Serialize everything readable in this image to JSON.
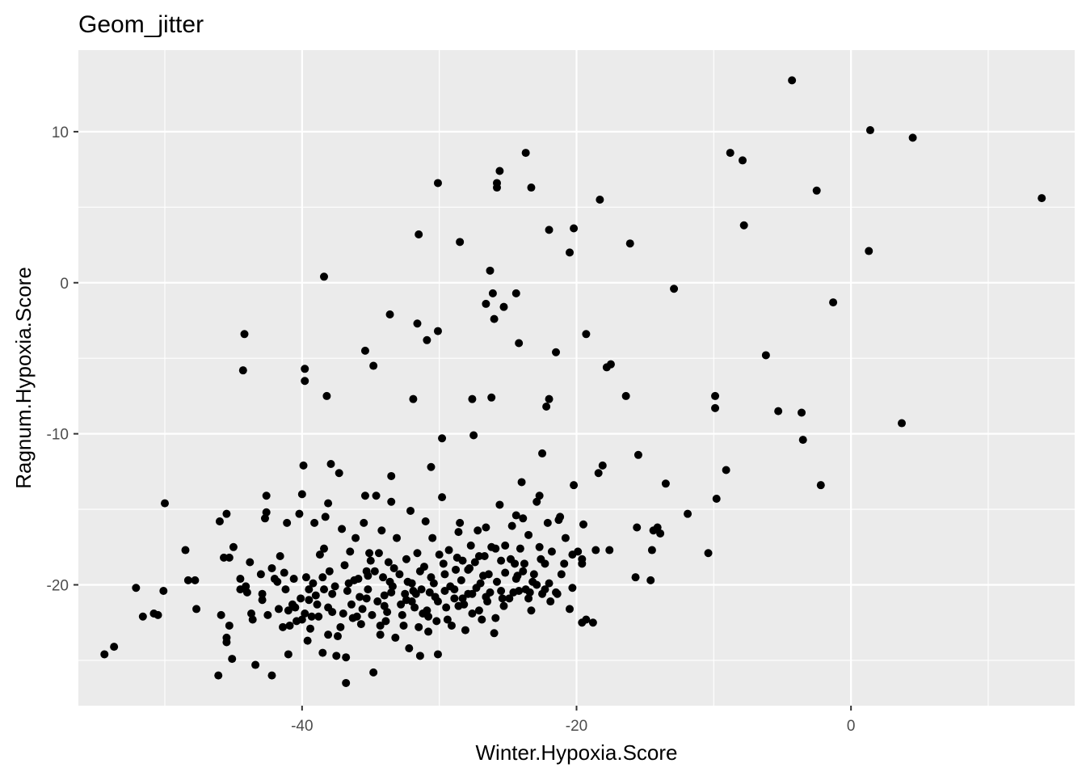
{
  "chart_data": {
    "type": "scatter",
    "title": "Geom_jitter",
    "xlabel": "Winter.Hypoxia.Score",
    "ylabel": "Ragnum.Hypoxia.Score",
    "xlim": [
      -56.3,
      16.3
    ],
    "ylim": [
      -28.0,
      15.4
    ],
    "x_ticks": [
      -40,
      -20,
      0
    ],
    "y_ticks": [
      -20,
      -10,
      0,
      10
    ],
    "x_minor_ticks": [
      -50,
      -30,
      -10,
      10
    ],
    "y_minor_ticks": [
      -25,
      -15,
      -5,
      5
    ],
    "grid": true,
    "legend": "none",
    "panel_color": "#ebebeb",
    "grid_color": "#ffffff",
    "point_color": "#000000",
    "points": [
      [
        -4.3,
        13.4
      ],
      [
        1.4,
        10.1
      ],
      [
        4.5,
        9.6
      ],
      [
        13.9,
        5.6
      ],
      [
        -8.8,
        8.6
      ],
      [
        -7.9,
        8.1
      ],
      [
        -2.5,
        6.1
      ],
      [
        1.3,
        2.1
      ],
      [
        -1.3,
        -1.3
      ],
      [
        -6.2,
        -4.8
      ],
      [
        -5.3,
        -8.5
      ],
      [
        -3.6,
        -8.6
      ],
      [
        -3.5,
        -10.4
      ],
      [
        -2.2,
        -13.4
      ],
      [
        3.7,
        -9.3
      ],
      [
        -7.8,
        3.8
      ],
      [
        -12.9,
        -0.4
      ],
      [
        -9.9,
        -7.5
      ],
      [
        -9.9,
        -8.3
      ],
      [
        -9.1,
        -12.4
      ],
      [
        -9.8,
        -14.3
      ],
      [
        -10.4,
        -17.9
      ],
      [
        -11.9,
        -15.3
      ],
      [
        -13.5,
        -13.3
      ],
      [
        -13.9,
        -16.6
      ],
      [
        -14.1,
        -16.2
      ],
      [
        -14.4,
        -16.4
      ],
      [
        -14.5,
        -17.7
      ],
      [
        -14.6,
        -19.7
      ],
      [
        -15.5,
        -11.4
      ],
      [
        -15.6,
        -16.2
      ],
      [
        -15.7,
        -19.5
      ],
      [
        -16.1,
        2.6
      ],
      [
        -16.4,
        -7.5
      ],
      [
        -17.5,
        -5.4
      ],
      [
        -17.8,
        -5.6
      ],
      [
        -17.6,
        -17.7
      ],
      [
        -18.1,
        -12.1
      ],
      [
        -18.3,
        5.5
      ],
      [
        -18.4,
        -12.6
      ],
      [
        -19.3,
        -3.4
      ],
      [
        -19.6,
        -22.5
      ],
      [
        -20.2,
        3.6
      ],
      [
        -20.5,
        2.0
      ],
      [
        -20.2,
        -13.4
      ],
      [
        -20.3,
        -20.2
      ],
      [
        -21.2,
        -15.5
      ],
      [
        -21.5,
        -4.6
      ],
      [
        -22.0,
        -7.7
      ],
      [
        -22.2,
        -8.2
      ],
      [
        -22.0,
        3.5
      ],
      [
        -22.5,
        -11.3
      ],
      [
        -22.7,
        -14.1
      ],
      [
        -23.3,
        6.3
      ],
      [
        -23.7,
        8.6
      ],
      [
        -24.0,
        -13.2
      ],
      [
        -24.2,
        -4.0
      ],
      [
        -24.4,
        -0.7
      ],
      [
        -24.4,
        -15.4
      ],
      [
        -25.3,
        -1.6
      ],
      [
        -25.6,
        7.4
      ],
      [
        -25.8,
        6.3
      ],
      [
        -25.8,
        6.6
      ],
      [
        -26.0,
        -2.4
      ],
      [
        -26.1,
        -0.7
      ],
      [
        -26.2,
        -7.6
      ],
      [
        -26.3,
        0.8
      ],
      [
        -26.6,
        -1.4
      ],
      [
        -26.6,
        -16.2
      ],
      [
        -27.6,
        -7.7
      ],
      [
        -27.5,
        -10.1
      ],
      [
        -28.5,
        2.7
      ],
      [
        -28.5,
        -15.9
      ],
      [
        -29.8,
        -10.3
      ],
      [
        -30.1,
        -3.2
      ],
      [
        -30.1,
        6.6
      ],
      [
        -30.6,
        -12.2
      ],
      [
        -30.9,
        -3.8
      ],
      [
        -31.5,
        3.2
      ],
      [
        -31.6,
        -2.7
      ],
      [
        -31.9,
        -7.7
      ],
      [
        -33.6,
        -2.1
      ],
      [
        -33.5,
        -12.8
      ],
      [
        -34.8,
        -5.5
      ],
      [
        -35.4,
        -4.5
      ],
      [
        -38.4,
        0.4
      ],
      [
        -38.2,
        -7.5
      ],
      [
        -39.8,
        -5.7
      ],
      [
        -39.8,
        -6.5
      ],
      [
        -44.2,
        -3.4
      ],
      [
        -44.3,
        -5.8
      ],
      [
        -50.0,
        -14.6
      ],
      [
        -48.5,
        -17.7
      ],
      [
        -48.3,
        -19.7
      ],
      [
        -47.8,
        -19.7
      ],
      [
        -47.7,
        -21.6
      ],
      [
        -50.1,
        -20.4
      ],
      [
        -52.1,
        -20.2
      ],
      [
        -51.6,
        -22.1
      ],
      [
        -50.5,
        -22.0
      ],
      [
        -50.8,
        -21.9
      ],
      [
        -54.4,
        -24.6
      ],
      [
        -53.7,
        -24.1
      ],
      [
        -46.1,
        -26.0
      ],
      [
        -46.0,
        -15.8
      ],
      [
        -45.5,
        -15.3
      ],
      [
        -45.0,
        -17.5
      ],
      [
        -45.1,
        -24.9
      ],
      [
        -45.3,
        -22.7
      ],
      [
        -45.5,
        -23.5
      ],
      [
        -45.5,
        -23.8
      ],
      [
        -45.9,
        -22.0
      ],
      [
        -45.7,
        -18.2
      ],
      [
        -45.3,
        -18.2
      ],
      [
        -44.5,
        -19.6
      ],
      [
        -44.1,
        -20.1
      ],
      [
        -44.5,
        -20.3
      ],
      [
        -43.8,
        -18.5
      ],
      [
        -43.7,
        -21.9
      ],
      [
        -43.4,
        -25.3
      ],
      [
        -42.9,
        -20.6
      ],
      [
        -42.7,
        -15.6
      ],
      [
        -42.6,
        -15.2
      ],
      [
        -42.6,
        -14.1
      ],
      [
        -42.2,
        -26.0
      ],
      [
        -42.5,
        -22.0
      ],
      [
        -42.0,
        -19.6
      ],
      [
        -41.7,
        -21.6
      ],
      [
        -41.6,
        -18.1
      ],
      [
        -41.2,
        -20.3
      ],
      [
        -41.1,
        -15.9
      ],
      [
        -41.0,
        -24.6
      ],
      [
        -41.0,
        -21.7
      ],
      [
        -40.6,
        -19.6
      ],
      [
        -40.2,
        -15.3
      ],
      [
        -40.0,
        -22.3
      ],
      [
        -40.0,
        -14.0
      ],
      [
        -39.9,
        -12.1
      ],
      [
        -39.7,
        -19.5
      ],
      [
        -39.6,
        -23.7
      ],
      [
        -39.3,
        -22.1
      ],
      [
        -39.1,
        -15.9
      ],
      [
        -39.2,
        -19.9
      ],
      [
        -38.8,
        -22.1
      ],
      [
        -38.5,
        -24.5
      ],
      [
        -38.5,
        -19.5
      ],
      [
        -38.4,
        -17.6
      ],
      [
        -38.3,
        -15.5
      ],
      [
        -38.1,
        -14.6
      ],
      [
        -38.1,
        -23.3
      ],
      [
        -37.9,
        -12.0
      ],
      [
        -37.8,
        -20.6
      ],
      [
        -37.5,
        -24.7
      ],
      [
        -37.3,
        -12.6
      ],
      [
        -37.1,
        -16.3
      ],
      [
        -37.0,
        -21.9
      ],
      [
        -36.8,
        -24.8
      ],
      [
        -36.8,
        -26.5
      ],
      [
        -36.6,
        -19.9
      ],
      [
        -36.5,
        -17.8
      ],
      [
        -36.3,
        -22.2
      ],
      [
        -36.1,
        -16.9
      ],
      [
        -35.8,
        -20.8
      ],
      [
        -35.7,
        -22.6
      ],
      [
        -35.5,
        -15.9
      ],
      [
        -35.4,
        -14.1
      ],
      [
        -35.3,
        -19.1
      ],
      [
        -35.2,
        -20.3
      ],
      [
        -35.1,
        -17.9
      ],
      [
        -34.9,
        -22.0
      ],
      [
        -34.8,
        -25.8
      ],
      [
        -34.6,
        -14.1
      ],
      [
        -34.4,
        -17.9
      ],
      [
        -34.3,
        -23.3
      ],
      [
        -34.1,
        -19.5
      ],
      [
        -34.0,
        -20.7
      ],
      [
        -33.9,
        -22.4
      ],
      [
        -33.7,
        -18.5
      ],
      [
        -33.5,
        -14.5
      ],
      [
        -33.5,
        -20.5
      ],
      [
        -33.2,
        -23.5
      ],
      [
        -33.1,
        -16.9
      ],
      [
        -32.9,
        -19.3
      ],
      [
        -32.7,
        -22.0
      ],
      [
        -32.5,
        -20.6
      ],
      [
        -32.4,
        -18.3
      ],
      [
        -32.2,
        -24.2
      ],
      [
        -32.1,
        -15.1
      ],
      [
        -32.0,
        -19.9
      ],
      [
        -31.8,
        -21.5
      ],
      [
        -31.6,
        -17.9
      ],
      [
        -31.5,
        -22.8
      ],
      [
        -31.4,
        -24.7
      ],
      [
        -31.3,
        -20.3
      ],
      [
        -31.1,
        -18.8
      ],
      [
        -31.0,
        -15.8
      ],
      [
        -30.8,
        -22.1
      ],
      [
        -30.6,
        -19.5
      ],
      [
        -30.5,
        -16.9
      ],
      [
        -30.3,
        -20.8
      ],
      [
        -30.1,
        -24.6
      ],
      [
        -30.0,
        -18.0
      ],
      [
        -29.8,
        -14.2
      ],
      [
        -29.6,
        -19.3
      ],
      [
        -29.5,
        -21.5
      ],
      [
        -29.3,
        -17.7
      ],
      [
        -29.1,
        -22.7
      ],
      [
        -28.9,
        -20.3
      ],
      [
        -28.7,
        -18.2
      ],
      [
        -28.6,
        -16.5
      ],
      [
        -28.4,
        -19.7
      ],
      [
        -28.2,
        -21.3
      ],
      [
        -28.1,
        -23.0
      ],
      [
        -27.9,
        -19.0
      ],
      [
        -27.7,
        -17.4
      ],
      [
        -27.6,
        -20.6
      ],
      [
        -27.4,
        -18.5
      ],
      [
        -27.2,
        -16.4
      ],
      [
        -27.0,
        -19.9
      ],
      [
        -26.9,
        -22.3
      ],
      [
        -26.7,
        -18.1
      ],
      [
        -26.5,
        -21.1
      ],
      [
        -26.2,
        -17.5
      ],
      [
        -26.0,
        -23.2
      ],
      [
        -25.8,
        -19.8
      ],
      [
        -25.6,
        -14.7
      ],
      [
        -25.5,
        -18.4
      ],
      [
        -25.3,
        -21.4
      ],
      [
        -25.2,
        -17.4
      ],
      [
        -24.9,
        -20.9
      ],
      [
        -24.7,
        -16.1
      ],
      [
        -24.5,
        -18.6
      ],
      [
        -24.4,
        -19.6
      ],
      [
        -24.1,
        -17.6
      ],
      [
        -23.9,
        -15.6
      ],
      [
        -23.7,
        -20.3
      ],
      [
        -23.5,
        -16.7
      ],
      [
        -23.3,
        -21.7
      ],
      [
        -23.1,
        -19.3
      ],
      [
        -22.9,
        -14.5
      ],
      [
        -22.7,
        -17.5
      ],
      [
        -22.5,
        -20.6
      ],
      [
        -22.3,
        -18.6
      ],
      [
        -22.1,
        -15.9
      ],
      [
        -21.9,
        -21.1
      ],
      [
        -21.8,
        -17.8
      ],
      [
        -21.5,
        -20.5
      ],
      [
        -21.3,
        -15.7
      ],
      [
        -21.1,
        -19.3
      ],
      [
        -20.8,
        -16.9
      ],
      [
        -20.5,
        -21.6
      ],
      [
        -20.3,
        -18.0
      ],
      [
        -19.9,
        -17.8
      ],
      [
        -19.6,
        -18.3
      ],
      [
        -19.6,
        -18.6
      ],
      [
        -19.3,
        -22.3
      ],
      [
        -19.5,
        -16.0
      ],
      [
        -18.8,
        -22.5
      ],
      [
        -18.6,
        -17.7
      ],
      [
        -44.0,
        -20.5
      ],
      [
        -43.0,
        -19.3
      ],
      [
        -42.2,
        -18.9
      ],
      [
        -41.4,
        -22.8
      ],
      [
        -40.7,
        -21.3
      ],
      [
        -40.4,
        -22.4
      ],
      [
        -39.5,
        -21.0
      ],
      [
        -39.0,
        -20.7
      ],
      [
        -38.7,
        -18.0
      ],
      [
        -38.1,
        -21.5
      ],
      [
        -37.6,
        -20.1
      ],
      [
        -37.2,
        -22.8
      ],
      [
        -36.9,
        -18.7
      ],
      [
        -36.4,
        -21.3
      ],
      [
        -35.9,
        -19.6
      ],
      [
        -35.6,
        -21.6
      ],
      [
        -35.0,
        -18.4
      ],
      [
        -34.5,
        -21.1
      ],
      [
        -34.2,
        -16.4
      ],
      [
        -33.8,
        -21.8
      ],
      [
        -33.3,
        -18.9
      ],
      [
        -32.8,
        -21.3
      ],
      [
        -32.3,
        -19.8
      ],
      [
        -31.9,
        -20.4
      ],
      [
        -31.2,
        -21.9
      ],
      [
        -30.7,
        -20.5
      ],
      [
        -30.2,
        -22.4
      ],
      [
        -29.7,
        -18.6
      ],
      [
        -29.2,
        -20.1
      ],
      [
        -28.8,
        -19.0
      ],
      [
        -28.3,
        -20.9
      ],
      [
        -27.8,
        -18.9
      ],
      [
        -27.3,
        -20.2
      ],
      [
        -26.8,
        -19.4
      ],
      [
        -26.3,
        -20.5
      ],
      [
        -25.9,
        -17.6
      ],
      [
        -25.4,
        -20.9
      ],
      [
        -24.8,
        -18.3
      ],
      [
        -24.3,
        -19.4
      ],
      [
        -23.8,
        -18.6
      ],
      [
        -23.2,
        -19.8
      ],
      [
        -22.6,
        -18.3
      ],
      [
        -22.0,
        -19.9
      ],
      [
        -21.4,
        -20.6
      ],
      [
        -20.9,
        -18.6
      ],
      [
        -43.6,
        -22.3
      ],
      [
        -42.9,
        -21.0
      ],
      [
        -41.8,
        -19.8
      ],
      [
        -40.9,
        -22.7
      ],
      [
        -40.1,
        -20.9
      ],
      [
        -39.4,
        -22.9
      ],
      [
        -38.9,
        -21.3
      ],
      [
        -38.0,
        -19.1
      ],
      [
        -37.4,
        -23.4
      ],
      [
        -36.7,
        -20.4
      ],
      [
        -36.0,
        -22.1
      ],
      [
        -35.3,
        -20.9
      ],
      [
        -34.7,
        -19.1
      ],
      [
        -34.0,
        -21.4
      ],
      [
        -33.4,
        -20.1
      ],
      [
        -32.6,
        -22.7
      ],
      [
        -32.0,
        -21.1
      ],
      [
        -31.4,
        -19.1
      ],
      [
        -30.8,
        -23.1
      ],
      [
        -30.1,
        -21.1
      ],
      [
        -29.4,
        -22.3
      ],
      [
        -28.9,
        -20.9
      ],
      [
        -28.3,
        -18.4
      ],
      [
        -27.6,
        -21.9
      ],
      [
        -27.1,
        -18.1
      ],
      [
        -26.6,
        -20.8
      ],
      [
        -25.9,
        -22.2
      ],
      [
        -25.2,
        -19.2
      ],
      [
        -24.6,
        -20.5
      ],
      [
        -23.9,
        -19.1
      ],
      [
        -23.4,
        -20.5
      ],
      [
        -22.9,
        -20.0
      ],
      [
        -22.3,
        -20.3
      ],
      [
        -41.3,
        -19.2
      ],
      [
        -40.5,
        -21.5
      ],
      [
        -39.8,
        -21.9
      ],
      [
        -39.5,
        -20.3
      ],
      [
        -38.4,
        -20.3
      ],
      [
        -37.8,
        -21.8
      ],
      [
        -36.2,
        -19.7
      ],
      [
        -35.2,
        -19.4
      ],
      [
        -34.3,
        -22.7
      ],
      [
        -33.6,
        -19.8
      ],
      [
        -32.4,
        -21.0
      ],
      [
        -31.7,
        -20.6
      ],
      [
        -30.9,
        -21.7
      ],
      [
        -30.4,
        -19.9
      ],
      [
        -29.6,
        -20.4
      ],
      [
        -28.6,
        -21.4
      ],
      [
        -27.9,
        -20.6
      ],
      [
        -27.1,
        -21.7
      ],
      [
        -26.4,
        -19.3
      ],
      [
        -25.5,
        -20.4
      ],
      [
        -24.2,
        -20.4
      ],
      [
        -23.5,
        -20.9
      ]
    ]
  }
}
